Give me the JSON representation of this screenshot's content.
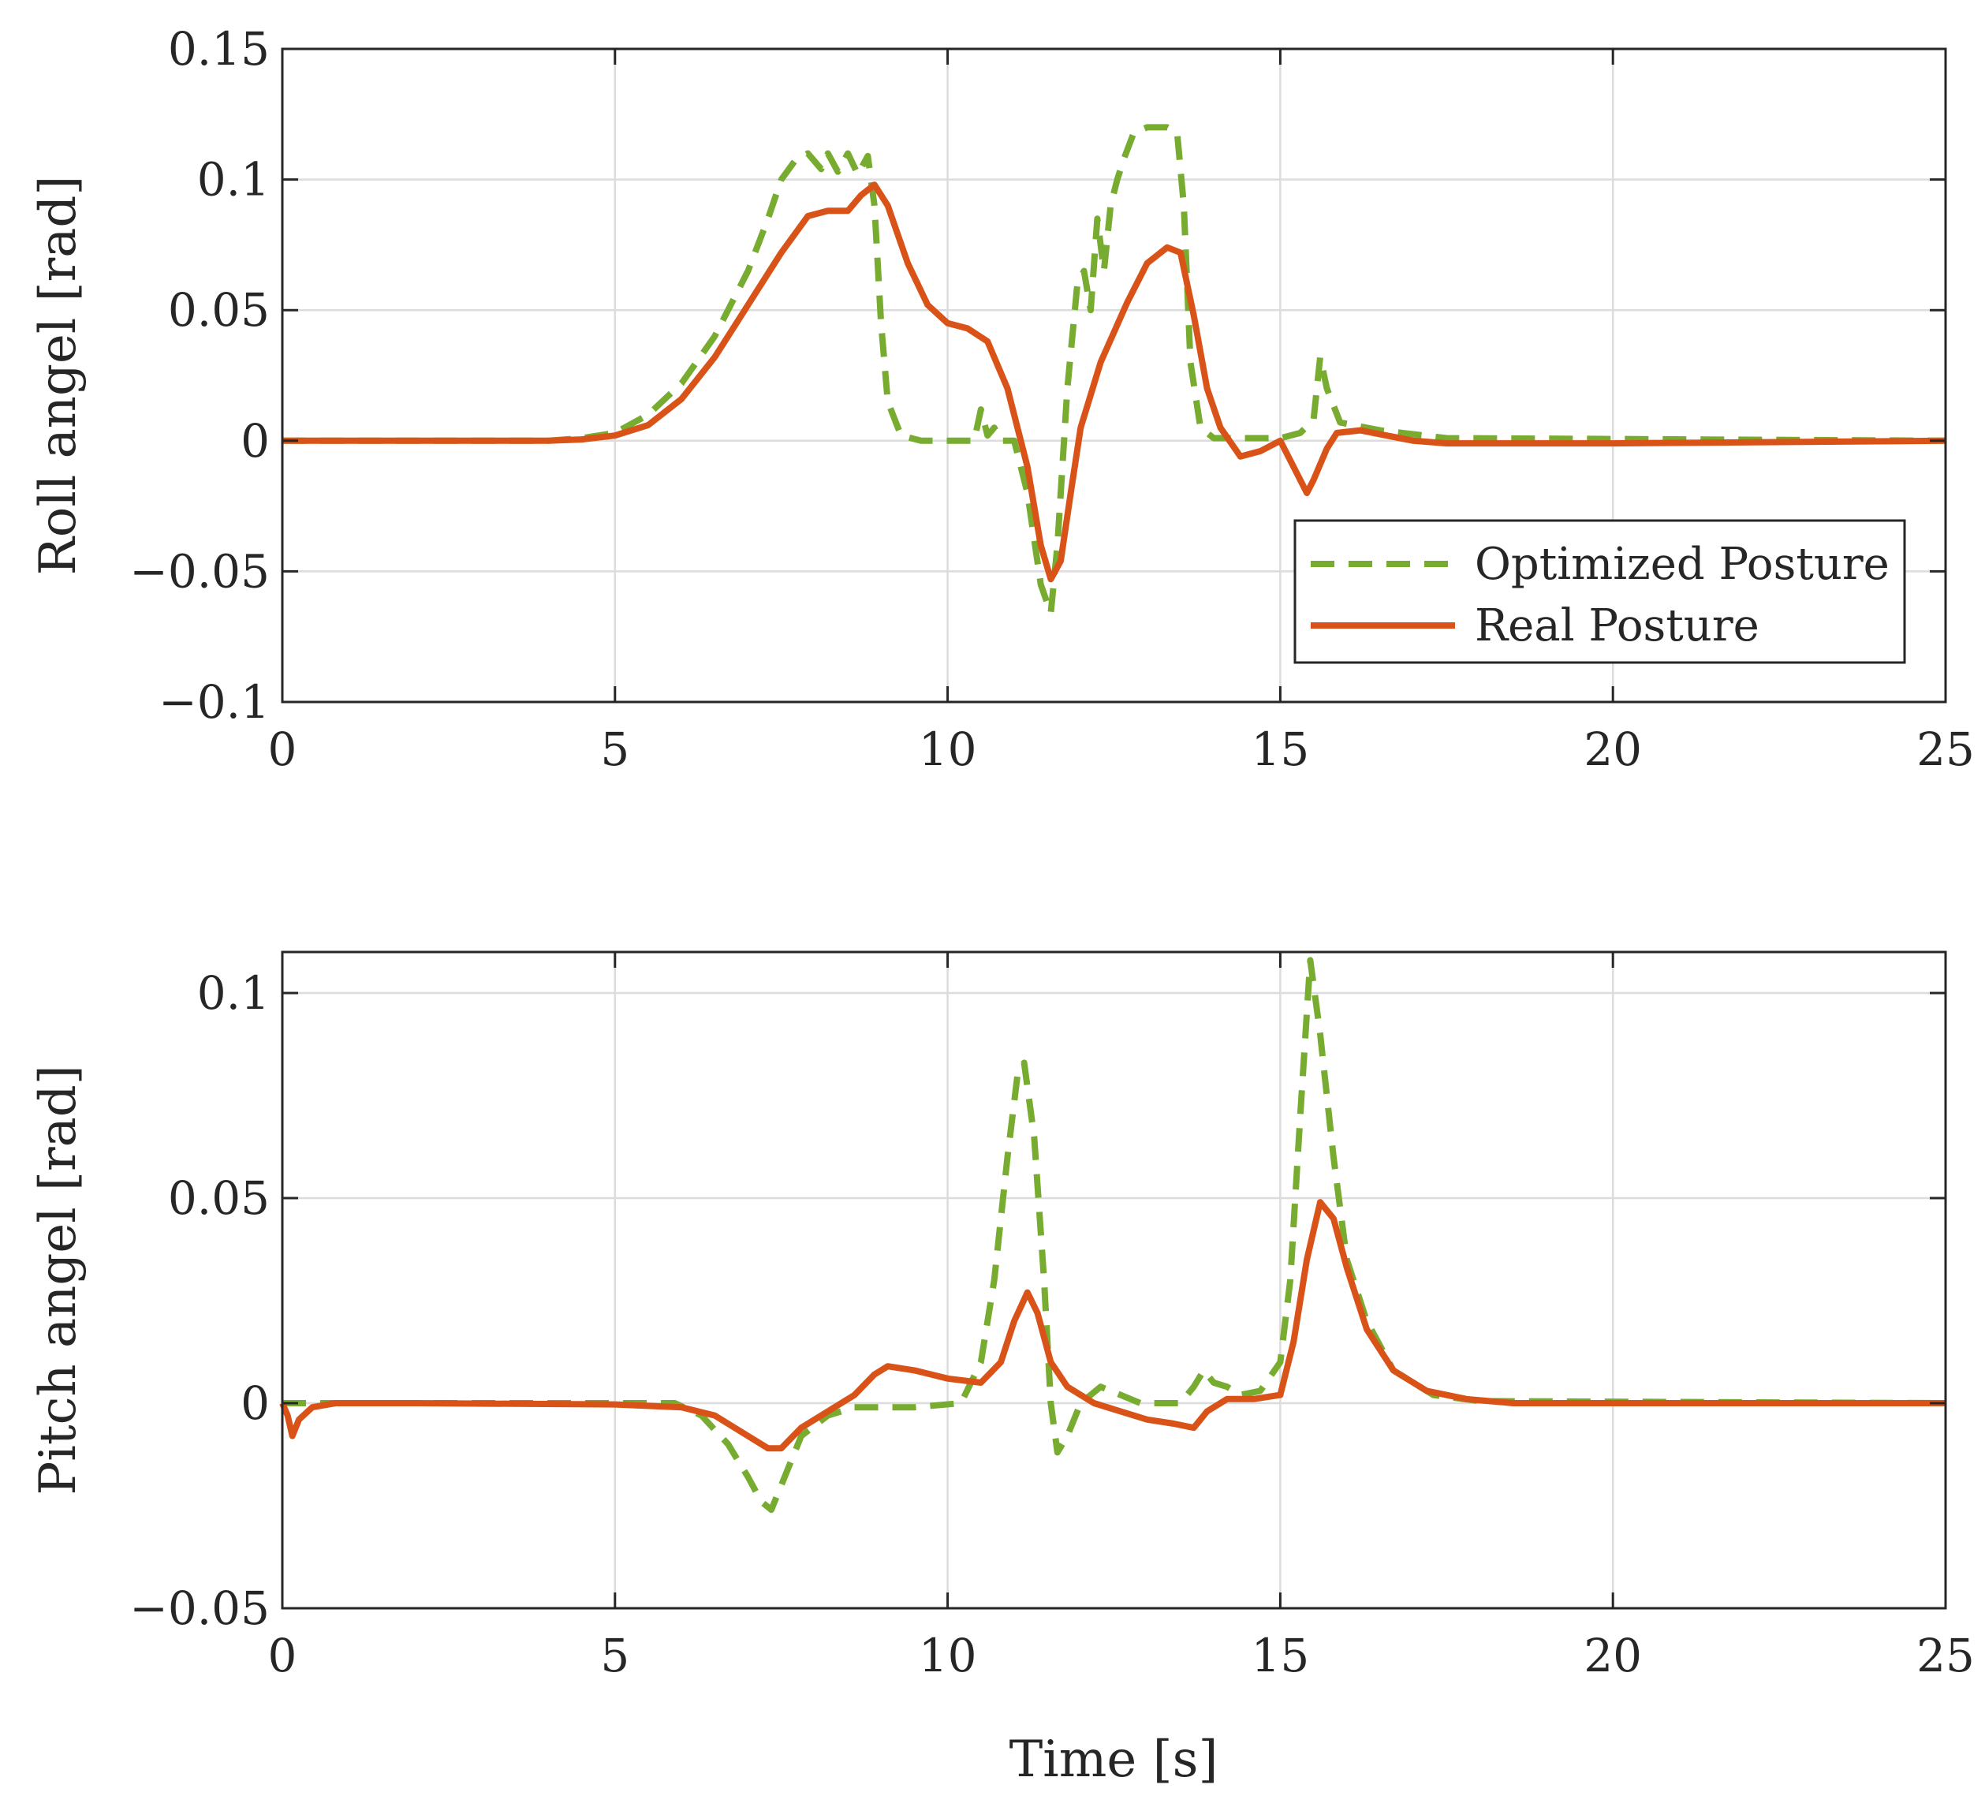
{
  "chart_data": [
    {
      "type": "line",
      "title": "",
      "xlabel": "",
      "ylabel": "Roll angel [rad]",
      "xlim": [
        0,
        25
      ],
      "ylim": [
        -0.1,
        0.15
      ],
      "xticks": [
        0,
        5,
        10,
        15,
        20,
        25
      ],
      "xtick_labels": [
        "0",
        "5",
        "10",
        "15",
        "20",
        "25"
      ],
      "yticks": [
        -0.1,
        -0.05,
        0,
        0.05,
        0.1,
        0.15
      ],
      "ytick_labels": [
        "−0.1",
        "−0.05",
        "0",
        "0.05",
        "0.1",
        "0.15"
      ],
      "grid": true,
      "legend": {
        "placement": "lower-right",
        "entries": [
          "Optimized Posture",
          "Real Posture"
        ]
      },
      "series": [
        {
          "name": "Optimized Posture",
          "color": "#77AC30",
          "style": "dashed",
          "points": [
            [
              0,
              0
            ],
            [
              4,
              0
            ],
            [
              4.5,
              0.001
            ],
            [
              5,
              0.003
            ],
            [
              5.5,
              0.01
            ],
            [
              6,
              0.022
            ],
            [
              6.5,
              0.04
            ],
            [
              7,
              0.065
            ],
            [
              7.3,
              0.085
            ],
            [
              7.5,
              0.1
            ],
            [
              7.7,
              0.107
            ],
            [
              7.9,
              0.11
            ],
            [
              8.1,
              0.104
            ],
            [
              8.2,
              0.11
            ],
            [
              8.35,
              0.103
            ],
            [
              8.5,
              0.11
            ],
            [
              8.65,
              0.102
            ],
            [
              8.8,
              0.109
            ],
            [
              8.9,
              0.09
            ],
            [
              9.0,
              0.045
            ],
            [
              9.1,
              0.015
            ],
            [
              9.3,
              0.002
            ],
            [
              9.6,
              0
            ],
            [
              10.4,
              0
            ],
            [
              10.5,
              0.012
            ],
            [
              10.6,
              0.002
            ],
            [
              10.7,
              0.005
            ],
            [
              10.8,
              0
            ],
            [
              11.0,
              0
            ],
            [
              11.2,
              -0.02
            ],
            [
              11.4,
              -0.055
            ],
            [
              11.55,
              -0.066
            ],
            [
              11.65,
              -0.04
            ],
            [
              11.8,
              0.02
            ],
            [
              11.95,
              0.06
            ],
            [
              12.05,
              0.065
            ],
            [
              12.15,
              0.05
            ],
            [
              12.25,
              0.085
            ],
            [
              12.35,
              0.065
            ],
            [
              12.45,
              0.09
            ],
            [
              12.55,
              0.1
            ],
            [
              12.65,
              0.108
            ],
            [
              12.8,
              0.118
            ],
            [
              13.0,
              0.12
            ],
            [
              13.3,
              0.12
            ],
            [
              13.45,
              0.118
            ],
            [
              13.55,
              0.09
            ],
            [
              13.65,
              0.03
            ],
            [
              13.8,
              0.005
            ],
            [
              14.0,
              0.001
            ],
            [
              15.0,
              0.001
            ],
            [
              15.3,
              0.003
            ],
            [
              15.5,
              0.008
            ],
            [
              15.6,
              0.032
            ],
            [
              15.7,
              0.02
            ],
            [
              15.9,
              0.007
            ],
            [
              16.5,
              0.004
            ],
            [
              17.5,
              0.001
            ],
            [
              25,
              0
            ]
          ]
        },
        {
          "name": "Real Posture",
          "color": "#D95319",
          "style": "solid",
          "points": [
            [
              0,
              0
            ],
            [
              4,
              0
            ],
            [
              4.5,
              0.0005
            ],
            [
              5,
              0.002
            ],
            [
              5.5,
              0.006
            ],
            [
              6,
              0.016
            ],
            [
              6.5,
              0.032
            ],
            [
              7,
              0.052
            ],
            [
              7.5,
              0.072
            ],
            [
              7.9,
              0.086
            ],
            [
              8.2,
              0.088
            ],
            [
              8.5,
              0.088
            ],
            [
              8.7,
              0.094
            ],
            [
              8.9,
              0.098
            ],
            [
              9.1,
              0.09
            ],
            [
              9.4,
              0.068
            ],
            [
              9.7,
              0.052
            ],
            [
              10,
              0.045
            ],
            [
              10.3,
              0.043
            ],
            [
              10.6,
              0.038
            ],
            [
              10.9,
              0.02
            ],
            [
              11.2,
              -0.01
            ],
            [
              11.4,
              -0.04
            ],
            [
              11.55,
              -0.053
            ],
            [
              11.7,
              -0.046
            ],
            [
              11.85,
              -0.02
            ],
            [
              12,
              0.005
            ],
            [
              12.3,
              0.03
            ],
            [
              12.7,
              0.053
            ],
            [
              13.0,
              0.068
            ],
            [
              13.3,
              0.074
            ],
            [
              13.5,
              0.072
            ],
            [
              13.7,
              0.048
            ],
            [
              13.9,
              0.02
            ],
            [
              14.1,
              0.005
            ],
            [
              14.4,
              -0.006
            ],
            [
              14.7,
              -0.004
            ],
            [
              15.0,
              0.0
            ],
            [
              15.2,
              -0.01
            ],
            [
              15.4,
              -0.02
            ],
            [
              15.5,
              -0.015
            ],
            [
              15.7,
              -0.003
            ],
            [
              15.85,
              0.003
            ],
            [
              16.2,
              0.004
            ],
            [
              17,
              0.0
            ],
            [
              17.5,
              -0.001
            ],
            [
              18,
              -0.001
            ],
            [
              20,
              -0.001
            ],
            [
              25,
              0
            ]
          ]
        }
      ]
    },
    {
      "type": "line",
      "title": "",
      "xlabel": "Time [s]",
      "ylabel": "Pitch angel [rad]",
      "xlim": [
        0,
        25
      ],
      "ylim": [
        -0.05,
        0.11
      ],
      "xticks": [
        0,
        5,
        10,
        15,
        20,
        25
      ],
      "xtick_labels": [
        "0",
        "5",
        "10",
        "15",
        "20",
        "25"
      ],
      "yticks": [
        -0.05,
        0,
        0.05,
        0.1
      ],
      "ytick_labels": [
        "−0.05",
        "0",
        "0.05",
        "0.1"
      ],
      "grid": true,
      "series": [
        {
          "name": "Optimized Posture",
          "color": "#77AC30",
          "style": "dashed",
          "points": [
            [
              0,
              0
            ],
            [
              5.9,
              0
            ],
            [
              6.3,
              -0.003
            ],
            [
              6.7,
              -0.01
            ],
            [
              7.0,
              -0.018
            ],
            [
              7.2,
              -0.024
            ],
            [
              7.35,
              -0.026
            ],
            [
              7.5,
              -0.02
            ],
            [
              7.8,
              -0.008
            ],
            [
              8.2,
              -0.003
            ],
            [
              8.6,
              -0.001
            ],
            [
              9,
              -0.001
            ],
            [
              9.5,
              -0.001
            ],
            [
              10.2,
              0
            ],
            [
              10.5,
              0.01
            ],
            [
              10.7,
              0.03
            ],
            [
              10.9,
              0.06
            ],
            [
              11.05,
              0.08
            ],
            [
              11.15,
              0.083
            ],
            [
              11.3,
              0.065
            ],
            [
              11.45,
              0.03
            ],
            [
              11.55,
              0.0
            ],
            [
              11.65,
              -0.012
            ],
            [
              11.8,
              -0.008
            ],
            [
              12,
              0.0
            ],
            [
              12.3,
              0.004
            ],
            [
              12.6,
              0.002
            ],
            [
              12.9,
              0
            ],
            [
              13.5,
              0
            ],
            [
              13.7,
              0.004
            ],
            [
              13.85,
              0.008
            ],
            [
              14.0,
              0.005
            ],
            [
              14.2,
              0.004
            ],
            [
              14.4,
              0.002
            ],
            [
              14.7,
              0.003
            ],
            [
              15.0,
              0.01
            ],
            [
              15.15,
              0.03
            ],
            [
              15.3,
              0.07
            ],
            [
              15.45,
              0.108
            ],
            [
              15.6,
              0.09
            ],
            [
              15.8,
              0.06
            ],
            [
              16.0,
              0.035
            ],
            [
              16.3,
              0.02
            ],
            [
              16.7,
              0.008
            ],
            [
              17.3,
              0.002
            ],
            [
              18,
              0.0005
            ],
            [
              25,
              0
            ]
          ]
        },
        {
          "name": "Real Posture",
          "color": "#D95319",
          "style": "solid",
          "points": [
            [
              0,
              0
            ],
            [
              0.08,
              -0.003
            ],
            [
              0.15,
              -0.008
            ],
            [
              0.25,
              -0.004
            ],
            [
              0.45,
              -0.001
            ],
            [
              0.8,
              0
            ],
            [
              2,
              0
            ],
            [
              5,
              -0.0003
            ],
            [
              6.0,
              -0.001
            ],
            [
              6.5,
              -0.003
            ],
            [
              7.0,
              -0.008
            ],
            [
              7.3,
              -0.011
            ],
            [
              7.5,
              -0.011
            ],
            [
              7.8,
              -0.006
            ],
            [
              8.2,
              -0.002
            ],
            [
              8.6,
              0.002
            ],
            [
              8.9,
              0.007
            ],
            [
              9.1,
              0.009
            ],
            [
              9.5,
              0.008
            ],
            [
              10,
              0.006
            ],
            [
              10.5,
              0.005
            ],
            [
              10.8,
              0.01
            ],
            [
              11.0,
              0.02
            ],
            [
              11.2,
              0.027
            ],
            [
              11.35,
              0.022
            ],
            [
              11.55,
              0.01
            ],
            [
              11.8,
              0.004
            ],
            [
              12.2,
              0.0
            ],
            [
              12.6,
              -0.002
            ],
            [
              13.0,
              -0.004
            ],
            [
              13.4,
              -0.005
            ],
            [
              13.7,
              -0.006
            ],
            [
              13.9,
              -0.002
            ],
            [
              14.2,
              0.001
            ],
            [
              14.6,
              0.001
            ],
            [
              15.0,
              0.002
            ],
            [
              15.2,
              0.015
            ],
            [
              15.4,
              0.035
            ],
            [
              15.6,
              0.049
            ],
            [
              15.8,
              0.045
            ],
            [
              16.0,
              0.033
            ],
            [
              16.3,
              0.018
            ],
            [
              16.7,
              0.008
            ],
            [
              17.2,
              0.003
            ],
            [
              17.8,
              0.001
            ],
            [
              18.5,
              0
            ],
            [
              25,
              0
            ]
          ]
        }
      ]
    }
  ]
}
